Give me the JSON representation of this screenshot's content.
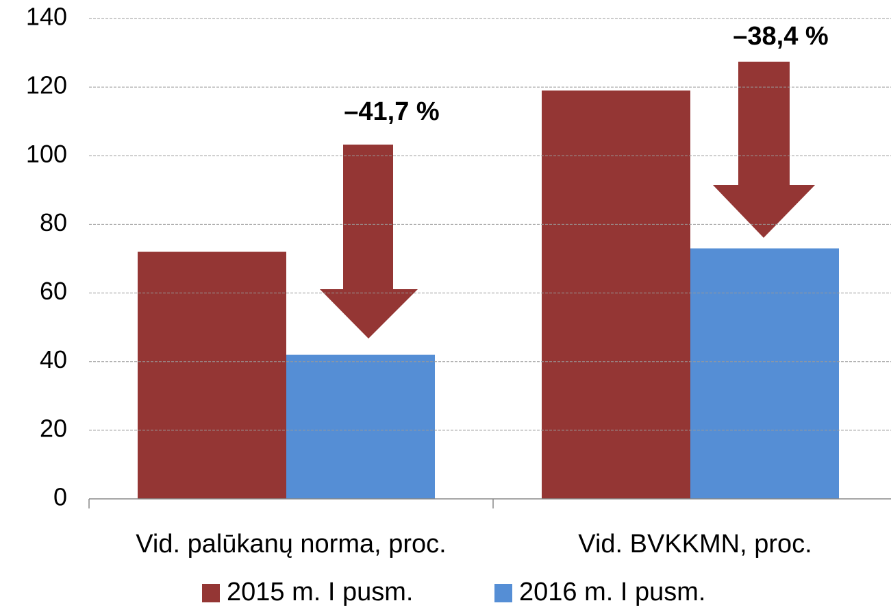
{
  "chart_data": {
    "type": "bar",
    "categories": [
      "Vid. palūkanų norma, proc.",
      "Vid. BVKKMN, proc."
    ],
    "series": [
      {
        "name": "2015 m. I pusm.",
        "color": "#943634",
        "values": [
          72,
          119
        ]
      },
      {
        "name": "2016 m. I pusm.",
        "color": "#558ed5",
        "values": [
          42,
          73
        ]
      }
    ],
    "ylim": [
      0,
      140
    ],
    "yticks": [
      0,
      20,
      40,
      60,
      80,
      100,
      120,
      140
    ],
    "grid": true,
    "annotations": [
      "–41,7 %",
      "–38,4 %"
    ],
    "legend": "bottom"
  }
}
